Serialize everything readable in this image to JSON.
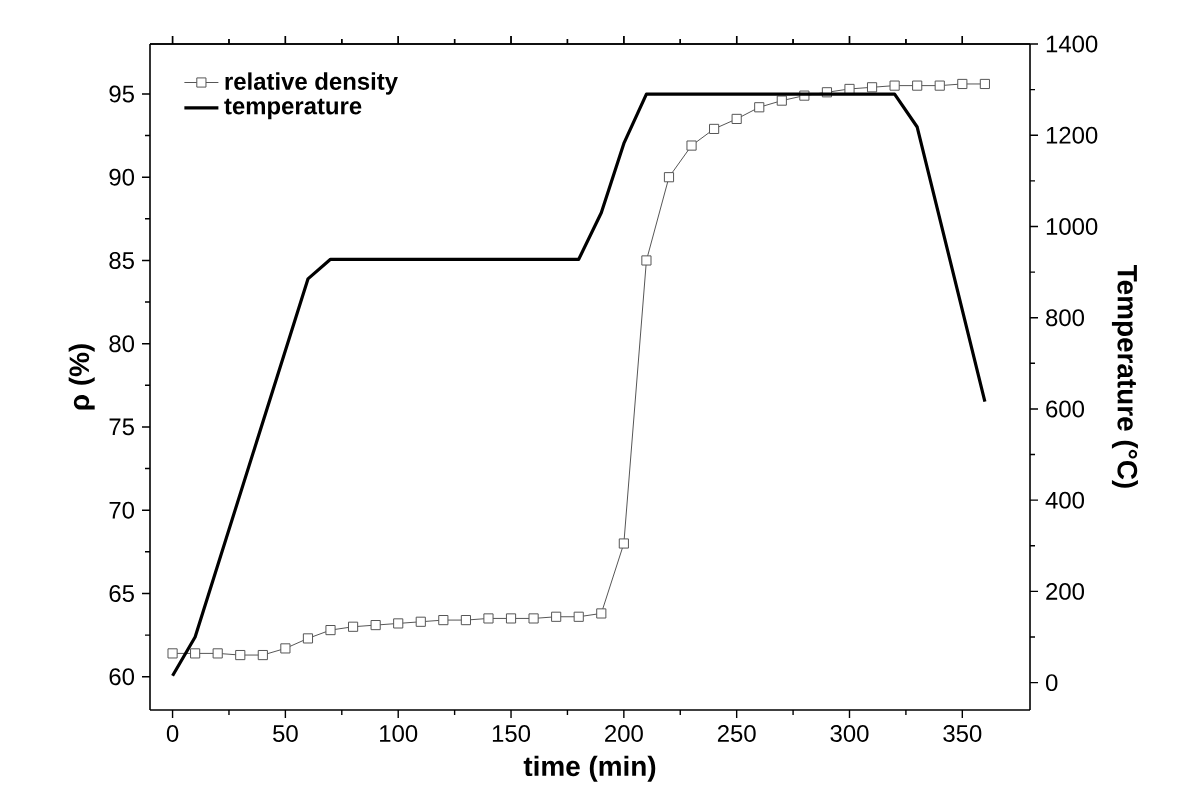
{
  "chart_data": {
    "type": "line",
    "xlabel": "time (min)",
    "ylabel": "ρ (%)",
    "y2label": "Temperature (°C)",
    "xlim": [
      -10,
      380
    ],
    "xticks": [
      0,
      50,
      100,
      150,
      200,
      250,
      300,
      350
    ],
    "ylim": [
      58,
      98
    ],
    "yticks": [
      60,
      65,
      70,
      75,
      80,
      85,
      90,
      95
    ],
    "y2lim": [
      -60,
      1400
    ],
    "y2ticks": [
      0,
      200,
      400,
      600,
      800,
      1000,
      1200,
      1400
    ],
    "grid": false,
    "legend": "top left",
    "series": [
      {
        "name": "relative density",
        "marker": "square",
        "color": "#555555",
        "x": [
          0,
          10,
          20,
          30,
          40,
          50,
          60,
          70,
          80,
          90,
          100,
          110,
          120,
          130,
          140,
          150,
          160,
          170,
          180,
          190,
          200,
          210,
          220,
          230,
          240,
          250,
          260,
          270,
          280,
          290,
          300,
          310,
          320,
          330,
          340,
          350,
          360
        ],
        "values": [
          61.4,
          61.4,
          61.4,
          61.3,
          61.3,
          61.7,
          62.3,
          62.8,
          63.0,
          63.1,
          63.2,
          63.3,
          63.4,
          63.4,
          63.5,
          63.5,
          63.5,
          63.6,
          63.6,
          63.8,
          68.0,
          85.0,
          90.0,
          91.9,
          92.9,
          93.5,
          94.2,
          94.6,
          94.9,
          95.1,
          95.3,
          95.4,
          95.5,
          95.5,
          95.5,
          95.6,
          95.6
        ]
      },
      {
        "name": "temperature",
        "marker": "none",
        "axis": "y2",
        "color": "#000000",
        "x": [
          0,
          10,
          60,
          70,
          180,
          190,
          200,
          210,
          320,
          330,
          360
        ],
        "values": [
          15,
          100,
          885,
          928,
          928,
          1030,
          1182,
          1290,
          1290,
          1218,
          616
        ]
      }
    ]
  }
}
